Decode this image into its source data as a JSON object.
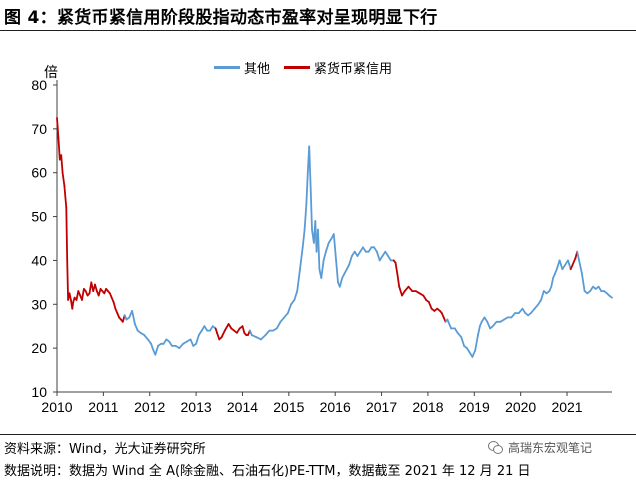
{
  "figure_title": "图 4：紧货币紧信用阶段股指动态市盈率对呈现明显下行",
  "source": "资料来源：Wind，光大证券研究所",
  "note": "数据说明：数据为 Wind 全 A(除金融、石油石化)PE-TTM，数据截至 2021 年 12 月 21 日",
  "watermark": "高瑞东宏观笔记",
  "watermark_icon": "wechat-icon",
  "chart_data": {
    "type": "line",
    "title": "",
    "ylabel": "倍",
    "xlabel": "",
    "ylim": [
      10,
      80
    ],
    "xlim": [
      2010.0,
      2021.97
    ],
    "yticks": [
      10,
      20,
      30,
      40,
      50,
      60,
      70,
      80
    ],
    "xticks": [
      "2010",
      "2011",
      "2012",
      "2013",
      "2014",
      "2015",
      "2016",
      "2017",
      "2018",
      "2019",
      "2020",
      "2021"
    ],
    "grid": false,
    "legend_position": "top-center",
    "x_end_date": "2021-12-21",
    "colors": {
      "其他": "#5b9bd5",
      "紧货币紧信用": "#c00000"
    },
    "series": [
      {
        "name": "其他",
        "color": "#5b9bd5"
      },
      {
        "name": "紧货币紧信用",
        "color": "#c00000"
      }
    ],
    "points": [
      [
        2010.0,
        72.5
      ],
      [
        2010.03,
        68
      ],
      [
        2010.06,
        63
      ],
      [
        2010.09,
        64
      ],
      [
        2010.12,
        60
      ],
      [
        2010.16,
        57
      ],
      [
        2010.2,
        52
      ],
      [
        2010.22,
        40
      ],
      [
        2010.24,
        31
      ],
      [
        2010.27,
        32.5
      ],
      [
        2010.3,
        31
      ],
      [
        2010.33,
        29
      ],
      [
        2010.35,
        30.5
      ],
      [
        2010.38,
        31.5
      ],
      [
        2010.42,
        31
      ],
      [
        2010.46,
        33
      ],
      [
        2010.5,
        32
      ],
      [
        2010.54,
        31
      ],
      [
        2010.58,
        33.5
      ],
      [
        2010.62,
        33
      ],
      [
        2010.66,
        32
      ],
      [
        2010.7,
        32.5
      ],
      [
        2010.74,
        35
      ],
      [
        2010.78,
        33
      ],
      [
        2010.82,
        34.5
      ],
      [
        2010.86,
        33
      ],
      [
        2010.9,
        32
      ],
      [
        2010.94,
        33.5
      ],
      [
        2010.98,
        33
      ],
      [
        2011.02,
        32.5
      ],
      [
        2011.06,
        33.5
      ],
      [
        2011.1,
        33
      ],
      [
        2011.14,
        32.5
      ],
      [
        2011.18,
        31.5
      ],
      [
        2011.22,
        30.5
      ],
      [
        2011.26,
        29
      ],
      [
        2011.3,
        28
      ],
      [
        2011.34,
        27
      ],
      [
        2011.38,
        26.5
      ],
      [
        2011.42,
        26
      ],
      [
        2011.46,
        27.5
      ],
      [
        2011.5,
        26.5
      ],
      [
        2011.56,
        27
      ],
      [
        2011.62,
        28.5
      ],
      [
        2011.68,
        25.5
      ],
      [
        2011.74,
        24
      ],
      [
        2011.8,
        23.5
      ],
      [
        2011.88,
        23
      ],
      [
        2011.96,
        22
      ],
      [
        2012.03,
        21
      ],
      [
        2012.08,
        19.5
      ],
      [
        2012.12,
        18.5
      ],
      [
        2012.18,
        20.5
      ],
      [
        2012.24,
        21
      ],
      [
        2012.3,
        21
      ],
      [
        2012.36,
        22
      ],
      [
        2012.42,
        21.5
      ],
      [
        2012.48,
        20.5
      ],
      [
        2012.56,
        20.5
      ],
      [
        2012.64,
        20
      ],
      [
        2012.72,
        21
      ],
      [
        2012.8,
        21.5
      ],
      [
        2012.88,
        22
      ],
      [
        2012.94,
        20.5
      ],
      [
        2013.0,
        21
      ],
      [
        2013.06,
        23
      ],
      [
        2013.12,
        24
      ],
      [
        2013.18,
        25
      ],
      [
        2013.24,
        24
      ],
      [
        2013.3,
        24
      ],
      [
        2013.36,
        25
      ],
      [
        2013.42,
        24.5
      ],
      [
        2013.45,
        23.5
      ],
      [
        2013.5,
        22
      ],
      [
        2013.55,
        22.5
      ],
      [
        2013.62,
        24
      ],
      [
        2013.7,
        25.5
      ],
      [
        2013.76,
        24.5
      ],
      [
        2013.82,
        24
      ],
      [
        2013.88,
        23.5
      ],
      [
        2013.94,
        24.5
      ],
      [
        2014.0,
        25
      ],
      [
        2014.04,
        23.5
      ],
      [
        2014.08,
        23
      ],
      [
        2014.12,
        23
      ],
      [
        2014.16,
        24
      ],
      [
        2014.2,
        23
      ],
      [
        2014.3,
        22.5
      ],
      [
        2014.4,
        22
      ],
      [
        2014.5,
        23
      ],
      [
        2014.58,
        24
      ],
      [
        2014.66,
        24
      ],
      [
        2014.74,
        24.5
      ],
      [
        2014.82,
        26
      ],
      [
        2014.9,
        27
      ],
      [
        2014.98,
        28
      ],
      [
        2015.05,
        30
      ],
      [
        2015.12,
        31
      ],
      [
        2015.18,
        33
      ],
      [
        2015.24,
        38
      ],
      [
        2015.3,
        43
      ],
      [
        2015.34,
        47
      ],
      [
        2015.38,
        53
      ],
      [
        2015.41,
        60
      ],
      [
        2015.44,
        66
      ],
      [
        2015.47,
        57
      ],
      [
        2015.5,
        47
      ],
      [
        2015.54,
        44
      ],
      [
        2015.57,
        49
      ],
      [
        2015.6,
        42
      ],
      [
        2015.63,
        47
      ],
      [
        2015.66,
        38
      ],
      [
        2015.7,
        36
      ],
      [
        2015.75,
        40
      ],
      [
        2015.8,
        42
      ],
      [
        2015.86,
        44
      ],
      [
        2015.92,
        45
      ],
      [
        2015.97,
        46
      ],
      [
        2016.02,
        40
      ],
      [
        2016.06,
        35
      ],
      [
        2016.1,
        34
      ],
      [
        2016.15,
        36
      ],
      [
        2016.2,
        37
      ],
      [
        2016.25,
        38
      ],
      [
        2016.3,
        39
      ],
      [
        2016.36,
        41
      ],
      [
        2016.42,
        42
      ],
      [
        2016.48,
        41
      ],
      [
        2016.54,
        42
      ],
      [
        2016.6,
        43
      ],
      [
        2016.66,
        42
      ],
      [
        2016.72,
        42
      ],
      [
        2016.78,
        43
      ],
      [
        2016.84,
        43
      ],
      [
        2016.9,
        42
      ],
      [
        2016.96,
        40
      ],
      [
        2017.02,
        41
      ],
      [
        2017.08,
        42
      ],
      [
        2017.14,
        41
      ],
      [
        2017.2,
        40
      ],
      [
        2017.26,
        40
      ],
      [
        2017.3,
        39.5
      ],
      [
        2017.34,
        37
      ],
      [
        2017.38,
        34
      ],
      [
        2017.44,
        32
      ],
      [
        2017.5,
        33
      ],
      [
        2017.58,
        34
      ],
      [
        2017.66,
        33
      ],
      [
        2017.74,
        33
      ],
      [
        2017.82,
        32.5
      ],
      [
        2017.9,
        32
      ],
      [
        2017.96,
        31
      ],
      [
        2018.02,
        30.5
      ],
      [
        2018.08,
        29
      ],
      [
        2018.14,
        28.5
      ],
      [
        2018.2,
        29
      ],
      [
        2018.26,
        28.5
      ],
      [
        2018.3,
        28
      ],
      [
        2018.34,
        27
      ],
      [
        2018.38,
        26
      ],
      [
        2018.42,
        26.5
      ],
      [
        2018.5,
        24.5
      ],
      [
        2018.58,
        24.5
      ],
      [
        2018.64,
        23.5
      ],
      [
        2018.72,
        22.5
      ],
      [
        2018.78,
        20.5
      ],
      [
        2018.84,
        20
      ],
      [
        2018.9,
        19
      ],
      [
        2018.96,
        18
      ],
      [
        2019.02,
        19.5
      ],
      [
        2019.08,
        23
      ],
      [
        2019.12,
        25
      ],
      [
        2019.16,
        26
      ],
      [
        2019.22,
        27
      ],
      [
        2019.28,
        26
      ],
      [
        2019.34,
        24.5
      ],
      [
        2019.4,
        25
      ],
      [
        2019.48,
        26
      ],
      [
        2019.56,
        26
      ],
      [
        2019.64,
        26.5
      ],
      [
        2019.72,
        27
      ],
      [
        2019.8,
        27
      ],
      [
        2019.88,
        28
      ],
      [
        2019.96,
        28
      ],
      [
        2020.04,
        29
      ],
      [
        2020.1,
        28
      ],
      [
        2020.16,
        27.5
      ],
      [
        2020.22,
        28
      ],
      [
        2020.3,
        29
      ],
      [
        2020.38,
        30
      ],
      [
        2020.44,
        31
      ],
      [
        2020.5,
        33
      ],
      [
        2020.56,
        32.5
      ],
      [
        2020.62,
        33
      ],
      [
        2020.66,
        34
      ],
      [
        2020.7,
        36
      ],
      [
        2020.74,
        37
      ],
      [
        2020.78,
        38
      ],
      [
        2020.84,
        40
      ],
      [
        2020.9,
        38
      ],
      [
        2020.96,
        39
      ],
      [
        2021.02,
        40
      ],
      [
        2021.08,
        38
      ],
      [
        2021.12,
        39
      ],
      [
        2021.18,
        40.5
      ],
      [
        2021.22,
        42
      ],
      [
        2021.26,
        40
      ],
      [
        2021.32,
        37
      ],
      [
        2021.38,
        33
      ],
      [
        2021.44,
        32.5
      ],
      [
        2021.5,
        33
      ],
      [
        2021.56,
        34
      ],
      [
        2021.62,
        33.5
      ],
      [
        2021.68,
        34
      ],
      [
        2021.74,
        33
      ],
      [
        2021.8,
        33
      ],
      [
        2021.86,
        32.5
      ],
      [
        2021.91,
        32
      ],
      [
        2021.97,
        31.5
      ]
    ],
    "red_ranges": [
      [
        2010.0,
        2011.46
      ],
      [
        2013.42,
        2014.16
      ],
      [
        2017.26,
        2018.38
      ],
      [
        2021.08,
        2021.22
      ]
    ]
  }
}
